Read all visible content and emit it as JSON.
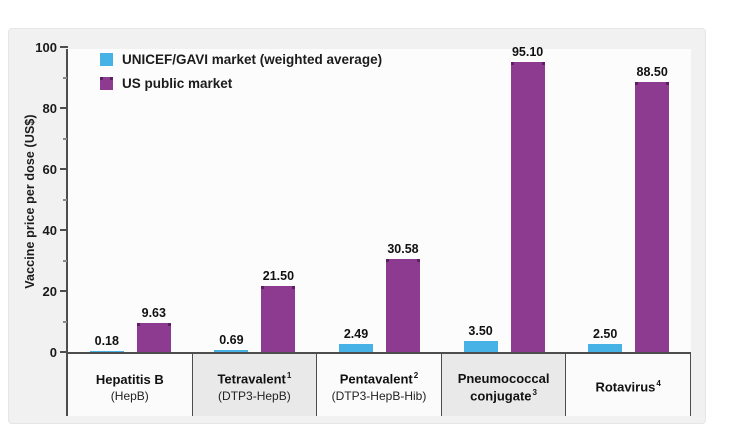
{
  "chart_data": {
    "type": "bar",
    "title": "",
    "ylabel": "Vaccine price per dose (US$)",
    "xlabel": "",
    "ylim": [
      0,
      100
    ],
    "yticks_major": [
      0,
      20,
      40,
      60,
      80,
      100
    ],
    "yticks_minor": [
      10,
      30,
      50,
      70,
      90
    ],
    "grid": "off",
    "legend_position": "top-left-inside",
    "categories": [
      {
        "line1": "Hepatitis B",
        "line1_sup": "",
        "line2": "(HepB)",
        "line2_sup": "",
        "line2_bold": false,
        "shaded": false
      },
      {
        "line1": "Tetravalent",
        "line1_sup": "1",
        "line2": "(DTP3-HepB)",
        "line2_sup": "",
        "line2_bold": false,
        "shaded": true
      },
      {
        "line1": "Pentavalent",
        "line1_sup": "2",
        "line2": "(DTP3-HepB-Hib)",
        "line2_sup": "",
        "line2_bold": false,
        "shaded": false
      },
      {
        "line1": "Pneumococcal",
        "line1_sup": "",
        "line2": "conjugate",
        "line2_sup": "3",
        "line2_bold": true,
        "shaded": true
      },
      {
        "line1": "Rotavirus",
        "line1_sup": "4",
        "line2": "",
        "line2_sup": "",
        "line2_bold": false,
        "shaded": false
      }
    ],
    "series": [
      {
        "name": "UNICEF/GAVI market (weighted average)",
        "color": "#47b2e6",
        "values": [
          0.18,
          0.69,
          2.49,
          3.5,
          2.5
        ],
        "value_labels": [
          "0.18",
          "0.69",
          "2.49",
          "3.50",
          "2.50"
        ]
      },
      {
        "name": "US public market",
        "color": "#8d3a91",
        "values": [
          9.63,
          21.5,
          30.58,
          95.1,
          88.5
        ],
        "value_labels": [
          "9.63",
          "21.50",
          "30.58",
          "95.10",
          "88.50"
        ]
      }
    ]
  }
}
